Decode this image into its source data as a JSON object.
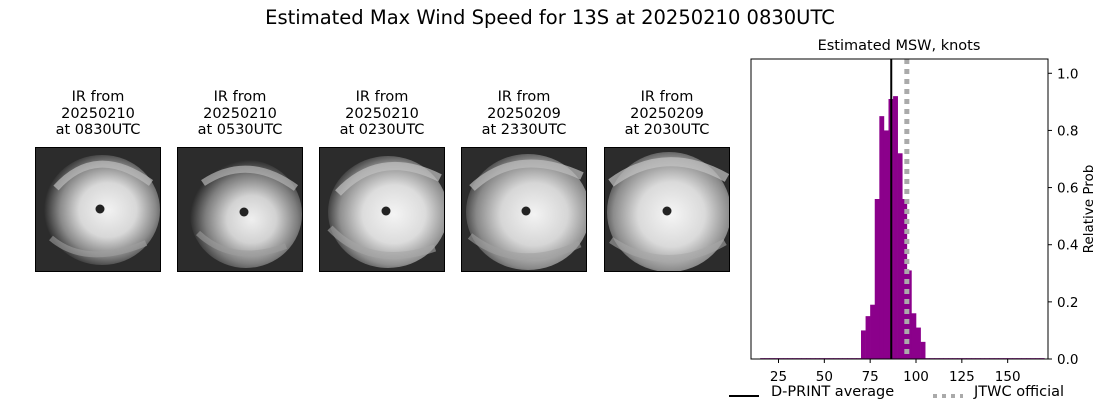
{
  "title": "Estimated Max Wind Speed for 13S at 20250210 0830UTC",
  "ir_images": [
    {
      "caption": "IR from\n20250210\nat 0830UTC"
    },
    {
      "caption": "IR from\n20250210\nat 0530UTC"
    },
    {
      "caption": "IR from\n20250210\nat 0230UTC"
    },
    {
      "caption": "IR from\n20250209\nat 2330UTC"
    },
    {
      "caption": "IR from\n20250209\nat 2030UTC"
    }
  ],
  "chart_data": {
    "type": "bar",
    "title": "Estimated MSW, knots",
    "ylabel": "Relative Prob",
    "xlim": [
      10,
      172
    ],
    "ylim": [
      0,
      1.05
    ],
    "xticks": [
      25,
      50,
      75,
      100,
      125,
      150
    ],
    "yticks": [
      "0.0",
      "0.2",
      "0.4",
      "0.6",
      "0.8",
      "1.0"
    ],
    "bin_width": 2.5,
    "bins_x": [
      15,
      17.5,
      20,
      22.5,
      25,
      27.5,
      30,
      32.5,
      35,
      37.5,
      40,
      42.5,
      45,
      47.5,
      50,
      52.5,
      55,
      57.5,
      60,
      62.5,
      65,
      67.5,
      70,
      72.5,
      75,
      77.5,
      80,
      82.5,
      85,
      87.5,
      90,
      92.5,
      95,
      97.5,
      100,
      102.5,
      105,
      107.5,
      110,
      112.5,
      115,
      117.5,
      120,
      122.5,
      125,
      127.5,
      130,
      132.5,
      135,
      137.5,
      140,
      142.5,
      145,
      147.5,
      150,
      152.5,
      155,
      157.5,
      160,
      162.5,
      165,
      167.5
    ],
    "bins_prob": [
      0.003,
      0.003,
      0.003,
      0.003,
      0.003,
      0.003,
      0.003,
      0.003,
      0.003,
      0.003,
      0.003,
      0.003,
      0.003,
      0.003,
      0.003,
      0.003,
      0.003,
      0.003,
      0.003,
      0.003,
      0.003,
      0.003,
      0.003,
      0.003,
      0.003,
      0.003,
      0.003,
      0.003,
      0.003,
      0.003,
      0.003,
      0.003,
      0.003,
      0.003,
      0.003,
      0.003,
      0.003,
      0.003,
      0.003,
      0.003,
      0.003,
      0.003,
      0.003,
      0.003,
      0.003,
      0.003,
      0.003,
      0.003,
      0.003,
      0.003,
      0.003,
      0.003,
      0.003,
      0.003,
      0.003,
      0.003,
      0.003,
      0.003,
      0.003,
      0.003,
      0.003,
      0.003
    ],
    "bars": [
      {
        "x": 70,
        "prob": 0.1
      },
      {
        "x": 72.5,
        "prob": 0.15
      },
      {
        "x": 75,
        "prob": 0.19
      },
      {
        "x": 77.5,
        "prob": 0.56
      },
      {
        "x": 80,
        "prob": 0.85
      },
      {
        "x": 82.5,
        "prob": 0.8
      },
      {
        "x": 85,
        "prob": 0.91
      },
      {
        "x": 87.5,
        "prob": 0.92
      },
      {
        "x": 90,
        "prob": 0.72
      },
      {
        "x": 92.5,
        "prob": 0.56
      },
      {
        "x": 95,
        "prob": 0.31
      },
      {
        "x": 97.5,
        "prob": 0.16
      },
      {
        "x": 100,
        "prob": 0.11
      },
      {
        "x": 102.5,
        "prob": 0.06
      }
    ],
    "dprint_average": 86.5,
    "jtwc_official": 95,
    "bar_color": "#8b008b",
    "legend": [
      {
        "label": "D-PRINT average",
        "style": "solid",
        "color": "#000000"
      },
      {
        "label": "JTWC official",
        "style": "dotted",
        "color": "#aaaaaa"
      }
    ]
  }
}
